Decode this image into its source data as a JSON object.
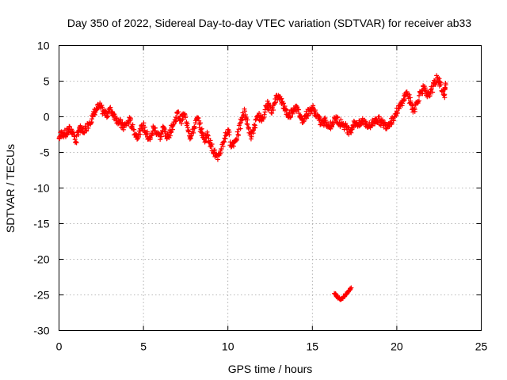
{
  "chart_data": {
    "type": "scatter",
    "title": "Day 350 of 2022, Sidereal Day-to-day VTEC variation (SDTVAR) for receiver ab33",
    "xlabel": "GPS time / hours",
    "ylabel": "SDTVAR / TECUs",
    "xlim": [
      0,
      25
    ],
    "ylim": [
      -30,
      10
    ],
    "x_ticks": [
      0,
      5,
      10,
      15,
      20,
      25
    ],
    "y_ticks": [
      10,
      5,
      0,
      -5,
      -10,
      -15,
      -20,
      -25,
      -30
    ],
    "x_tick_labels": [
      "0",
      "5",
      "10",
      "15",
      "20",
      "25"
    ],
    "y_tick_labels": [
      "10",
      "5",
      "0",
      "-5",
      "-10",
      "-15",
      "-20",
      "-25",
      "-30"
    ],
    "grid": true,
    "marker": "plus",
    "color": "#ff0000",
    "series": [
      {
        "name": "main",
        "x": [
          0.0,
          0.2,
          0.4,
          0.6,
          0.8,
          1.0,
          1.2,
          1.4,
          1.6,
          1.8,
          2.0,
          2.2,
          2.4,
          2.6,
          2.8,
          3.0,
          3.2,
          3.4,
          3.6,
          3.8,
          4.0,
          4.2,
          4.4,
          4.6,
          4.8,
          5.0,
          5.2,
          5.4,
          5.6,
          5.8,
          6.0,
          6.2,
          6.4,
          6.6,
          6.8,
          7.0,
          7.2,
          7.4,
          7.6,
          7.8,
          8.0,
          8.2,
          8.4,
          8.6,
          8.8,
          9.0,
          9.2,
          9.4,
          9.6,
          9.8,
          10.0,
          10.2,
          10.4,
          10.6,
          10.8,
          11.0,
          11.2,
          11.4,
          11.6,
          11.8,
          12.0,
          12.2,
          12.4,
          12.6,
          12.8,
          13.0,
          13.2,
          13.4,
          13.6,
          13.8,
          14.0,
          14.2,
          14.4,
          14.6,
          14.8,
          15.0,
          15.2,
          15.4,
          15.6,
          15.8,
          16.0,
          16.2,
          16.4,
          16.6,
          16.8,
          17.0,
          17.2,
          17.4,
          17.6,
          17.8,
          18.0,
          18.2,
          18.4,
          18.6,
          18.8,
          19.0,
          19.2,
          19.4,
          19.6,
          19.8,
          20.0,
          20.2,
          20.4,
          20.6,
          20.8,
          21.0,
          21.2,
          21.4,
          21.6,
          21.8,
          22.0,
          22.2,
          22.4,
          22.6,
          22.8,
          22.9
        ],
        "y": [
          -3.0,
          -2.2,
          -2.5,
          -1.8,
          -2.0,
          -3.5,
          -1.5,
          -2.2,
          -1.6,
          -0.8,
          0.0,
          1.0,
          1.5,
          0.8,
          0.2,
          1.0,
          0.5,
          -0.3,
          -0.8,
          -1.5,
          -1.0,
          -0.5,
          -1.8,
          -2.8,
          -2.0,
          -1.2,
          -2.5,
          -3.2,
          -1.5,
          -2.2,
          -2.8,
          -1.5,
          -3.0,
          -2.0,
          -1.0,
          0.5,
          -0.5,
          0.3,
          -1.0,
          -3.0,
          -1.5,
          -0.2,
          -1.8,
          -3.2,
          -2.5,
          -4.0,
          -5.0,
          -6.0,
          -4.5,
          -3.0,
          -1.8,
          -4.0,
          -3.5,
          -2.5,
          -0.5,
          0.8,
          -1.5,
          -2.8,
          -1.2,
          0.2,
          -0.5,
          1.0,
          1.8,
          0.5,
          2.5,
          3.0,
          2.0,
          1.0,
          0.0,
          0.8,
          1.5,
          0.5,
          -0.5,
          0.2,
          0.8,
          1.2,
          0.5,
          -0.5,
          -1.0,
          -0.5,
          -1.5,
          -0.8,
          -0.2,
          -0.8,
          -1.0,
          -1.5,
          -2.0,
          -1.2,
          -0.8,
          -1.2,
          -0.5,
          -1.0,
          -1.4,
          -0.8,
          -0.3,
          -0.6,
          -1.0,
          -1.2,
          -0.8,
          -0.2,
          0.8,
          1.5,
          2.5,
          3.5,
          2.0,
          1.0,
          2.0,
          3.5,
          4.0,
          2.8,
          3.5,
          4.5,
          5.5,
          4.5,
          3.0,
          4.5
        ]
      },
      {
        "name": "outlier",
        "x": [
          16.3,
          16.5,
          16.7,
          16.9,
          17.1,
          17.3
        ],
        "y": [
          -24.8,
          -25.3,
          -25.6,
          -25.2,
          -24.6,
          -24.0
        ]
      }
    ]
  }
}
